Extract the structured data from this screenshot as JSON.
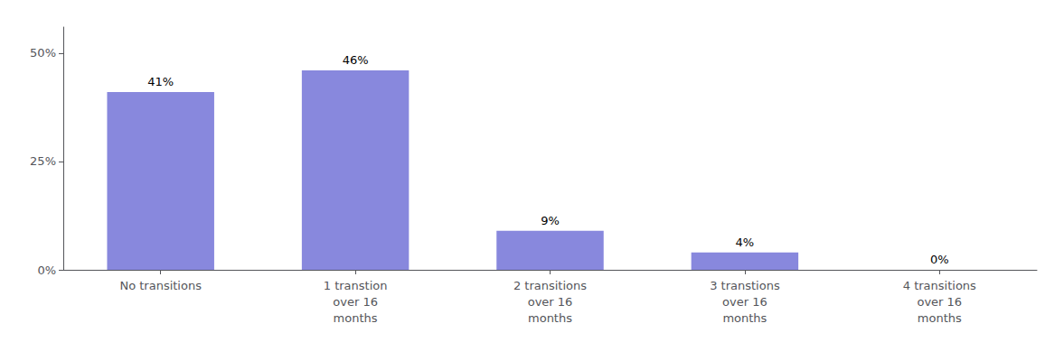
{
  "chart_data": {
    "type": "bar",
    "categories": [
      "No transitions",
      "1 transtion\nover 16\nmonths",
      "2 transitions\nover 16\nmonths",
      "3 transtions\nover 16\nmonths",
      "4 transitions\nover 16\nmonths"
    ],
    "values": [
      41,
      46,
      9,
      4,
      0
    ],
    "value_labels": [
      "41%",
      "46%",
      "9%",
      "4%",
      "0%"
    ],
    "color": "#8888dd",
    "ylim": [
      0,
      56
    ],
    "yticks": [
      {
        "value": 0,
        "label": "0%"
      },
      {
        "value": 25,
        "label": "25%"
      },
      {
        "value": 50,
        "label": "50%"
      }
    ],
    "grid": false,
    "data_labels": true
  }
}
